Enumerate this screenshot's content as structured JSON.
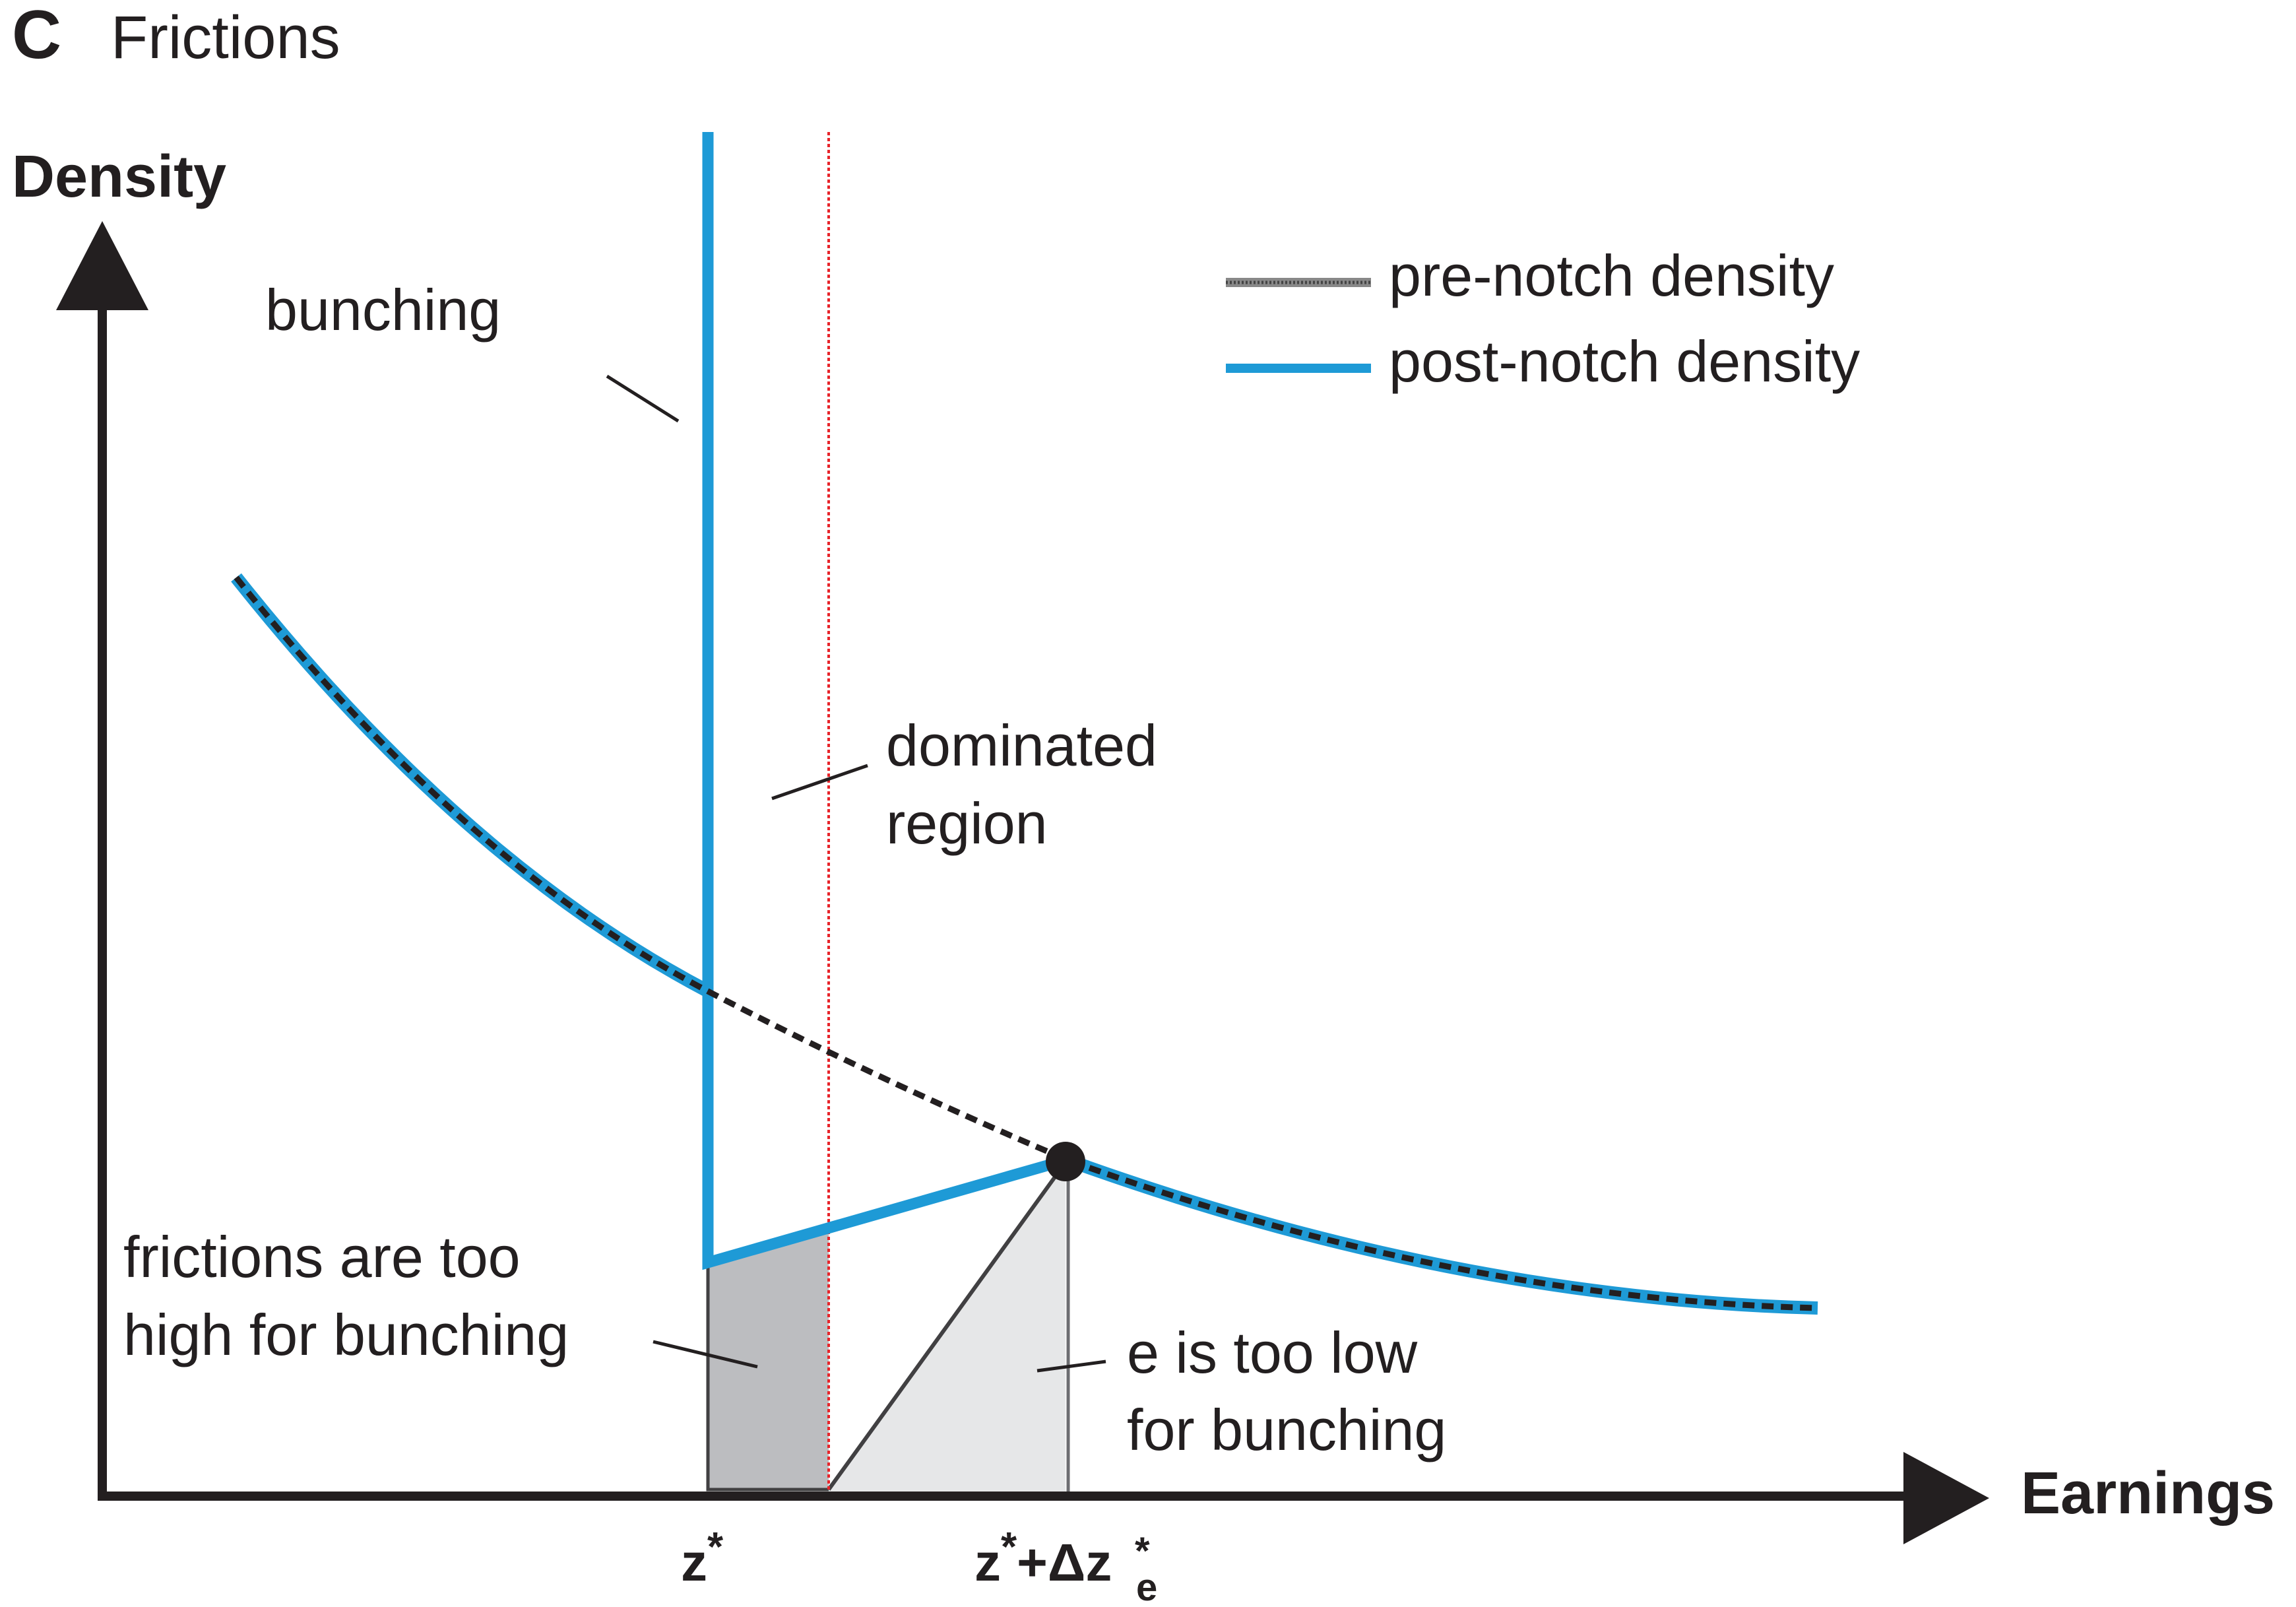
{
  "panel": {
    "letter": "C",
    "title": "Frictions"
  },
  "axes": {
    "y_label": "Density",
    "x_label": "Earnings"
  },
  "legend": {
    "items": [
      {
        "label": "pre-notch density",
        "color": "#666666",
        "style": "dashed"
      },
      {
        "label": "post-notch density",
        "color": "#1e9ad6",
        "style": "solid"
      }
    ]
  },
  "annotations": {
    "bunching": "bunching",
    "dominated_line1": "dominated",
    "dominated_line2": "region",
    "frictions_line1": "frictions are too",
    "frictions_line2": "high for bunching",
    "elow_line1": "e is too low",
    "elow_line2": "for bunching"
  },
  "ticks": {
    "zstar": {
      "base": "z",
      "sup": "*"
    },
    "zstar_dz": {
      "base": "z",
      "sup": "*",
      "plus_delta": "+Δz",
      "dz_sup": "*",
      "dz_sub": "e"
    }
  },
  "colors": {
    "axis": "#231f20",
    "post_notch": "#1e9ad6",
    "dominated_line": "#e8242a",
    "friction_fill": "#bcbdc0",
    "elow_fill": "#e6e7e8"
  }
}
